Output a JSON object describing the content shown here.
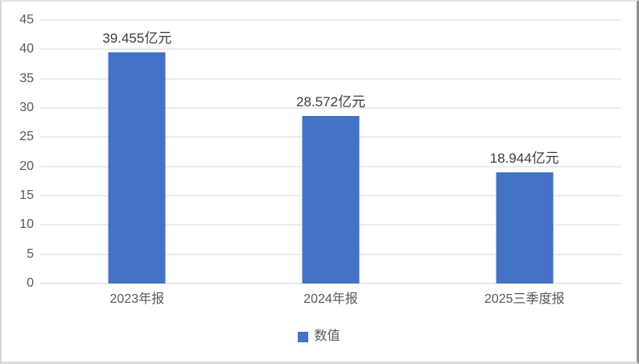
{
  "chart_data": {
    "type": "bar",
    "title": "",
    "categories": [
      "2023年报",
      "2024年报",
      "2025三季度报"
    ],
    "values": [
      39.455,
      28.572,
      18.944
    ],
    "data_labels": [
      "39.455亿元",
      "28.572亿元",
      "18.944亿元"
    ],
    "unit": "亿元",
    "ylim": [
      0,
      45
    ],
    "yticks": [
      0,
      5,
      10,
      15,
      20,
      25,
      30,
      35,
      40,
      45
    ],
    "xlabel": "",
    "ylabel": "",
    "grid": "horizontal",
    "legend": {
      "position": "bottom-center",
      "entries": [
        {
          "name": "数值",
          "color": "#4472c4"
        }
      ]
    },
    "colors": {
      "bar": "#4472c4",
      "gridline": "#d9d9d9",
      "axis_text": "#595959",
      "data_label_text": "#3d3d3d",
      "background": "#ffffff"
    }
  }
}
